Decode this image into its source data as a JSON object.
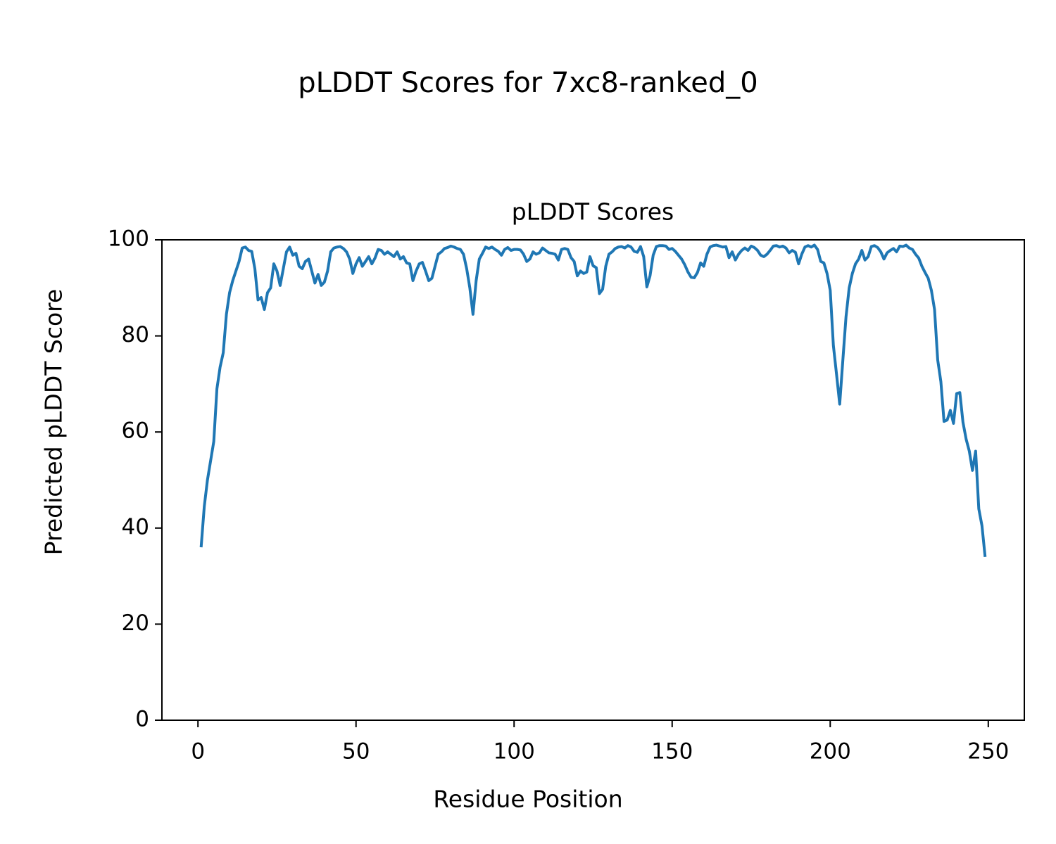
{
  "chart_data": {
    "type": "line",
    "title": "pLDDT Scores for 7xc8-ranked_0",
    "subtitle": "pLDDT Scores",
    "xlabel": "Residue Position",
    "ylabel": "Predicted pLDDT Score",
    "xlim": [
      -11.4,
      261.4
    ],
    "ylim": [
      0,
      100
    ],
    "xticks": [
      0,
      50,
      100,
      150,
      200,
      250
    ],
    "yticks": [
      0,
      20,
      40,
      60,
      80,
      100
    ],
    "grid": false,
    "x": [
      1,
      2,
      3,
      4,
      5,
      6,
      7,
      8,
      9,
      10,
      11,
      12,
      13,
      14,
      15,
      16,
      17,
      18,
      19,
      20,
      21,
      22,
      23,
      24,
      25,
      26,
      27,
      28,
      29,
      30,
      31,
      32,
      33,
      34,
      35,
      36,
      37,
      38,
      39,
      40,
      41,
      42,
      43,
      44,
      45,
      46,
      47,
      48,
      49,
      50,
      51,
      52,
      53,
      54,
      55,
      56,
      57,
      58,
      59,
      60,
      61,
      62,
      63,
      64,
      65,
      66,
      67,
      68,
      69,
      70,
      71,
      72,
      73,
      74,
      75,
      76,
      77,
      78,
      79,
      80,
      81,
      82,
      83,
      84,
      85,
      86,
      87,
      88,
      89,
      90,
      91,
      92,
      93,
      94,
      95,
      96,
      97,
      98,
      99,
      100,
      101,
      102,
      103,
      104,
      105,
      106,
      107,
      108,
      109,
      110,
      111,
      112,
      113,
      114,
      115,
      116,
      117,
      118,
      119,
      120,
      121,
      122,
      123,
      124,
      125,
      126,
      127,
      128,
      129,
      130,
      131,
      132,
      133,
      134,
      135,
      136,
      137,
      138,
      139,
      140,
      141,
      142,
      143,
      144,
      145,
      146,
      147,
      148,
      149,
      150,
      151,
      152,
      153,
      154,
      155,
      156,
      157,
      158,
      159,
      160,
      161,
      162,
      163,
      164,
      165,
      166,
      167,
      168,
      169,
      170,
      171,
      172,
      173,
      174,
      175,
      176,
      177,
      178,
      179,
      180,
      181,
      182,
      183,
      184,
      185,
      186,
      187,
      188,
      189,
      190,
      191,
      192,
      193,
      194,
      195,
      196,
      197,
      198,
      199,
      200,
      201,
      202,
      203,
      204,
      205,
      206,
      207,
      208,
      209,
      210,
      211,
      212,
      213,
      214,
      215,
      216,
      217,
      218,
      219,
      220,
      221,
      222,
      223,
      224,
      225,
      226,
      227,
      228,
      229,
      230,
      231,
      232,
      233,
      234,
      235,
      236,
      237,
      238,
      239,
      240,
      241,
      242,
      243,
      244,
      245,
      246,
      247,
      248,
      249
    ],
    "series": [
      {
        "name": "pLDDT",
        "color": "#1f77b4",
        "values": [
          36,
          44.5,
          50,
          54,
          58,
          69,
          73.5,
          76.5,
          84.5,
          89,
          91.5,
          93.5,
          95.5,
          98.3,
          98.5,
          97.8,
          97.6,
          94,
          87.5,
          88,
          85.5,
          89,
          90,
          95,
          93.5,
          90.5,
          94,
          97.5,
          98.5,
          96.8,
          97.2,
          94.5,
          94,
          95.5,
          96,
          93.5,
          91,
          92.8,
          90.5,
          91.2,
          93.5,
          97.5,
          98.3,
          98.5,
          98.6,
          98.2,
          97.5,
          96,
          93,
          95,
          96.3,
          94.5,
          95.5,
          96.5,
          95,
          96.2,
          98,
          97.8,
          97,
          97.5,
          97,
          96.5,
          97.5,
          96,
          96.5,
          95.2,
          95,
          91.5,
          93.5,
          95,
          95.3,
          93.5,
          91.5,
          92,
          94.5,
          97,
          97.5,
          98.2,
          98.4,
          98.7,
          98.5,
          98.2,
          98,
          97,
          94,
          90,
          84.5,
          91.5,
          96,
          97.2,
          98.5,
          98.2,
          98.5,
          98,
          97.6,
          96.8,
          98,
          98.4,
          97.8,
          98,
          98,
          97.9,
          97,
          95.5,
          96,
          97.5,
          97,
          97.3,
          98.3,
          97.8,
          97.3,
          97.2,
          97,
          95.8,
          98,
          98.2,
          98,
          96.3,
          95.5,
          92.5,
          93.5,
          93,
          93.3,
          96.5,
          94.6,
          94.2,
          88.8,
          89.7,
          94.5,
          97,
          97.5,
          98.2,
          98.5,
          98.6,
          98.3,
          98.8,
          98.5,
          97.6,
          97.4,
          98.6,
          96.5,
          90.2,
          92.5,
          96.8,
          98.6,
          98.8,
          98.8,
          98.7,
          98,
          98.2,
          97.6,
          96.8,
          96,
          94.8,
          93.3,
          92.2,
          92.1,
          93.2,
          95.2,
          94.5,
          97,
          98.5,
          98.8,
          98.9,
          98.7,
          98.5,
          98.6,
          96.3,
          97.5,
          95.8,
          97,
          97.8,
          98.3,
          97.8,
          98.7,
          98.4,
          97.8,
          96.8,
          96.5,
          97,
          97.8,
          98.7,
          98.8,
          98.5,
          98.7,
          98.3,
          97.3,
          97.8,
          97.4,
          95,
          97,
          98.5,
          98.8,
          98.5,
          98.9,
          98,
          95.5,
          95.2,
          93,
          89.5,
          78,
          72,
          65.8,
          75,
          84,
          90,
          93,
          95,
          96,
          97.8,
          95.8,
          96.5,
          98.6,
          98.8,
          98.4,
          97.5,
          96,
          97.3,
          97.8,
          98.2,
          97.5,
          98.7,
          98.6,
          98.9,
          98.3,
          98,
          97,
          96.2,
          94.5,
          93.2,
          92,
          89.5,
          85.5,
          75,
          70.5,
          62.2,
          62.5,
          64.5,
          61.8,
          68,
          68.2,
          62,
          58.5,
          56,
          52,
          56,
          44,
          40.5,
          34
        ]
      }
    ]
  }
}
